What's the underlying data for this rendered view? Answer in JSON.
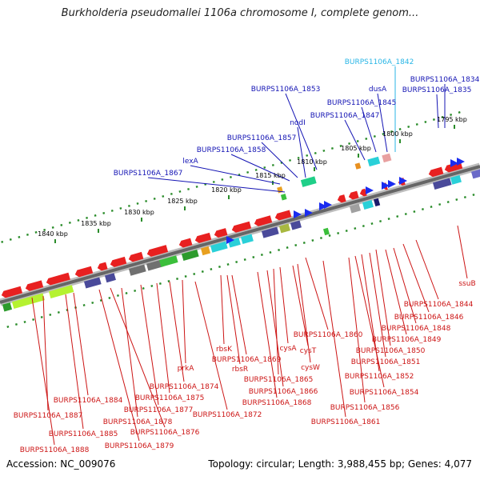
{
  "title": "Burkholderia pseudomallei 1106a chromosome I, complete genom...",
  "footer": {
    "accession": "Accession: NC_009076",
    "summary": "Topology: circular; Length: 3,988,455 bp; Genes: 4,077"
  },
  "ticks": [
    {
      "label": "1795 kbp"
    },
    {
      "label": "1800 kbp"
    },
    {
      "label": "1805 kbp"
    },
    {
      "label": "1810 kbp"
    },
    {
      "label": "1815 kbp"
    },
    {
      "label": "1820 kbp"
    },
    {
      "label": "1825 kbp"
    },
    {
      "label": "1830 kbp"
    },
    {
      "label": "1835 kbp"
    },
    {
      "label": "1840 kbp"
    }
  ],
  "genes_top": [
    {
      "label": "BURPS1106A_1842",
      "color": "#29b6e6"
    },
    {
      "label": "BURPS1106A_1834",
      "color": "#1414b4"
    },
    {
      "label": "BURPS1106A_1835",
      "color": "#1414b4"
    },
    {
      "label": "dusA",
      "color": "#1414b4"
    },
    {
      "label": "BURPS1106A_1853",
      "color": "#1414b4"
    },
    {
      "label": "BURPS1106A_1845",
      "color": "#1414b4"
    },
    {
      "label": "nodI",
      "color": "#1414b4"
    },
    {
      "label": "BURPS1106A_1847",
      "color": "#1414b4"
    },
    {
      "label": "BURPS1106A_1857",
      "color": "#1414b4"
    },
    {
      "label": "BURPS1106A_1858",
      "color": "#1414b4"
    },
    {
      "label": "lexA",
      "color": "#1414b4"
    },
    {
      "label": "BURPS1106A_1867",
      "color": "#1414b4"
    }
  ],
  "genes_bottom": [
    {
      "label": "ssuB"
    },
    {
      "label": "BURPS1106A_1844"
    },
    {
      "label": "BURPS1106A_1846"
    },
    {
      "label": "BURPS1106A_1848"
    },
    {
      "label": "BURPS1106A_1849"
    },
    {
      "label": "BURPS1106A_1860"
    },
    {
      "label": "BURPS1106A_1850"
    },
    {
      "label": "BURPS1106A_1851"
    },
    {
      "label": "BURPS1106A_1852"
    },
    {
      "label": "BURPS1106A_1854"
    },
    {
      "label": "BURPS1106A_1856"
    },
    {
      "label": "BURPS1106A_1861"
    },
    {
      "label": "cysA"
    },
    {
      "label": "cysT"
    },
    {
      "label": "cysW"
    },
    {
      "label": "BURPS1106A_1865"
    },
    {
      "label": "BURPS1106A_1866"
    },
    {
      "label": "BURPS1106A_1868"
    },
    {
      "label": "rbsK"
    },
    {
      "label": "BURPS1106A_1869"
    },
    {
      "label": "rbsR"
    },
    {
      "label": "prkA"
    },
    {
      "label": "BURPS1106A_1872"
    },
    {
      "label": "BURPS1106A_1874"
    },
    {
      "label": "BURPS1106A_1875"
    },
    {
      "label": "BURPS1106A_1877"
    },
    {
      "label": "BURPS1106A_1878"
    },
    {
      "label": "BURPS1106A_1876"
    },
    {
      "label": "BURPS1106A_1879"
    },
    {
      "label": "BURPS1106A_1884"
    },
    {
      "label": "BURPS1106A_1887"
    },
    {
      "label": "BURPS1106A_1885"
    },
    {
      "label": "BURPS1106A_1888"
    }
  ],
  "colors": {
    "backbone": "#666666",
    "forward_cds": "#e82020",
    "reverse_cds": "#1a2cf0",
    "ticks": "#2a8c2a",
    "label_red": "#cc1414",
    "label_blue": "#1414b4"
  }
}
